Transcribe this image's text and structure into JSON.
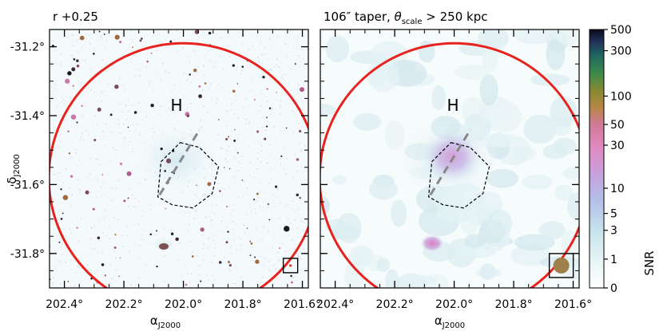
{
  "chart_data": [
    {
      "type": "image",
      "title": "r +0.25",
      "xlabel": "αJ2000",
      "ylabel": "δJ2000",
      "xlim": [
        202.45,
        201.58
      ],
      "ylim": [
        -31.9,
        -31.15
      ],
      "xticks": [
        202.4,
        202.2,
        202.0,
        201.8,
        201.6
      ],
      "xtick_labels": [
        "202.4°",
        "202.2°",
        "202.0°",
        "201.8°",
        "201.6°"
      ],
      "yticks": [
        -31.2,
        -31.4,
        -31.6,
        -31.8
      ],
      "ytick_labels": [
        "-31.2°",
        "-31.4°",
        "-31.6°",
        "-31.8°"
      ],
      "halo_label": "H",
      "red_circle": {
        "center": [
          202.0,
          -31.58
        ],
        "radius_deg": 0.39
      },
      "dashed_line": {
        "from": [
          202.08,
          -31.63
        ],
        "to": [
          201.945,
          -31.44
        ]
      },
      "beam": {
        "ra": 201.64,
        "dec": -31.835,
        "filled": false
      }
    },
    {
      "type": "image",
      "title_prefix": "106″ taper, ",
      "title_theta": "θ",
      "title_sub": "scale",
      "title_suffix": " > 250 kpc",
      "xlabel": "αJ2000",
      "xlim": [
        202.45,
        201.58
      ],
      "ylim": [
        -31.9,
        -31.15
      ],
      "xticks": [
        202.4,
        202.2,
        202.0,
        201.8,
        201.6
      ],
      "xtick_labels": [
        "202.4°",
        "202.2°",
        "202.0°",
        "201.8°",
        "201.6°"
      ],
      "yticks": [
        -31.2,
        -31.4,
        -31.6,
        -31.8
      ],
      "halo_label": "H",
      "red_circle": {
        "center": [
          202.0,
          -31.58
        ],
        "radius_deg": 0.39
      },
      "dashed_line": {
        "from": [
          202.08,
          -31.63
        ],
        "to": [
          201.945,
          -31.44
        ]
      },
      "beam": {
        "ra": 201.64,
        "dec": -31.835,
        "filled": true,
        "color": "#a0804a"
      }
    },
    {
      "type": "colorbar",
      "label": "SNR",
      "scale": "symlog",
      "ticks": [
        0,
        1,
        3,
        5,
        10,
        30,
        50,
        100,
        300,
        500
      ],
      "tick_labels": [
        "0",
        "1",
        "3",
        "5",
        "10",
        "30",
        "50",
        "100",
        "300",
        "500"
      ]
    }
  ],
  "axis_label_alpha": "α",
  "axis_label_delta": "δ",
  "axis_label_sub": "J2000",
  "colors": {
    "circle": "#e8221f",
    "dashed": "#888888",
    "contour": "#000000"
  }
}
